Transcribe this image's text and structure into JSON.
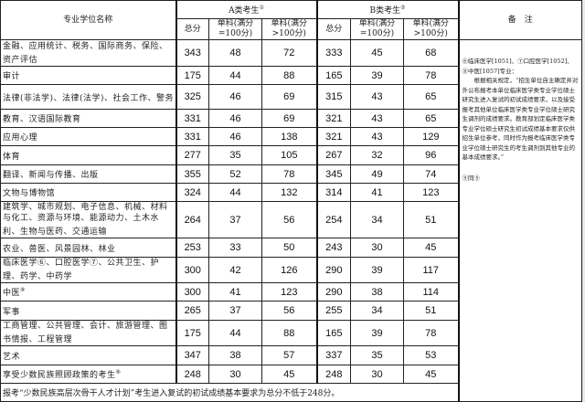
{
  "header": {
    "name_col": "专业学位名称",
    "group_a": "A类考生",
    "group_a_mark": "①",
    "group_b": "B类考生",
    "group_b_mark": "②",
    "notes_col": "备　注",
    "total": "总分",
    "single_100": "单科(满分=100分)",
    "single_gt100": "单科(满分>100分)"
  },
  "rows": [
    {
      "name": "金融、应用统计、税务、国际商务、保险、资产评估",
      "mark": "",
      "a": [
        "343",
        "48",
        "72"
      ],
      "b": [
        "333",
        "45",
        "68"
      ]
    },
    {
      "name": "审计",
      "mark": "",
      "a": [
        "175",
        "44",
        "88"
      ],
      "b": [
        "165",
        "39",
        "78"
      ]
    },
    {
      "name": "法律(非法学)、法律(法学)、社会工作、警务",
      "mark": "",
      "a": [
        "325",
        "46",
        "69"
      ],
      "b": [
        "315",
        "43",
        "65"
      ]
    },
    {
      "name": "教育、汉语国际教育",
      "mark": "",
      "a": [
        "331",
        "46",
        "69"
      ],
      "b": [
        "321",
        "43",
        "65"
      ]
    },
    {
      "name": "应用心理",
      "mark": "",
      "a": [
        "331",
        "46",
        "138"
      ],
      "b": [
        "321",
        "43",
        "129"
      ]
    },
    {
      "name": "体育",
      "mark": "",
      "a": [
        "277",
        "35",
        "105"
      ],
      "b": [
        "267",
        "32",
        "96"
      ]
    },
    {
      "name": "翻译、新闻与传播、出版",
      "mark": "",
      "a": [
        "355",
        "52",
        "78"
      ],
      "b": [
        "345",
        "49",
        "74"
      ]
    },
    {
      "name": "文物与博物馆",
      "mark": "",
      "a": [
        "324",
        "44",
        "132"
      ],
      "b": [
        "314",
        "41",
        "123"
      ]
    },
    {
      "name": "建筑学、城市规划、电子信息、机械、材料与化工、资源与环境、能源动力、土木水利、生物与医药、交通运输",
      "mark": "",
      "a": [
        "264",
        "37",
        "56"
      ],
      "b": [
        "254",
        "34",
        "51"
      ]
    },
    {
      "name": "农业、兽医、风景园林、林业",
      "mark": "",
      "a": [
        "253",
        "33",
        "50"
      ],
      "b": [
        "243",
        "30",
        "45"
      ]
    },
    {
      "name": "临床医学⑥、口腔医学⑦、公共卫生、护理、药学、中药学",
      "mark": "",
      "a": [
        "300",
        "42",
        "126"
      ],
      "b": [
        "290",
        "39",
        "117"
      ]
    },
    {
      "name": "中医",
      "mark": "⑧",
      "a": [
        "300",
        "41",
        "123"
      ],
      "b": [
        "290",
        "38",
        "114"
      ]
    },
    {
      "name": "军事",
      "mark": "",
      "a": [
        "265",
        "37",
        "56"
      ],
      "b": [
        "255",
        "34",
        "51"
      ]
    },
    {
      "name": "工商管理、公共管理、会计、旅游管理、图书情报、工程管理",
      "mark": "",
      "a": [
        "175",
        "44",
        "88"
      ],
      "b": [
        "165",
        "39",
        "78"
      ]
    },
    {
      "name": "艺术",
      "mark": "",
      "a": [
        "347",
        "38",
        "57"
      ],
      "b": [
        "337",
        "35",
        "53"
      ]
    },
    {
      "name": "享受少数民族照顾政策的考生",
      "mark": "⑨",
      "a": [
        "248",
        "30",
        "45"
      ],
      "b": [
        "248",
        "30",
        "45"
      ]
    }
  ],
  "notes": {
    "p1": "⑥临床医学[1051]、⑦口腔医学[1052]、⑧中医[1057]专业：",
    "p2": "　　根据相关规定，“招生单位自主确定并对外公布报考本单位临床医学类专业学位硕士研究生进入复试的初试成绩要求，以及接受报考其他单位临床医学类专业学位硕士研究生调剂的成绩要求。教育部划定临床医学类专业学位硕士研究生初试成绩基本要求仅供招生单位参考，同时作为报考临床医学类专业学位硕士研究生的考生调剂到其他专业的基本成绩要求。”",
    "p3": "⑨同⑤"
  },
  "footer": "报考“少数民族高层次骨干人才计划”考生进入复试的初试成绩基本要求为总分不低于248分。"
}
